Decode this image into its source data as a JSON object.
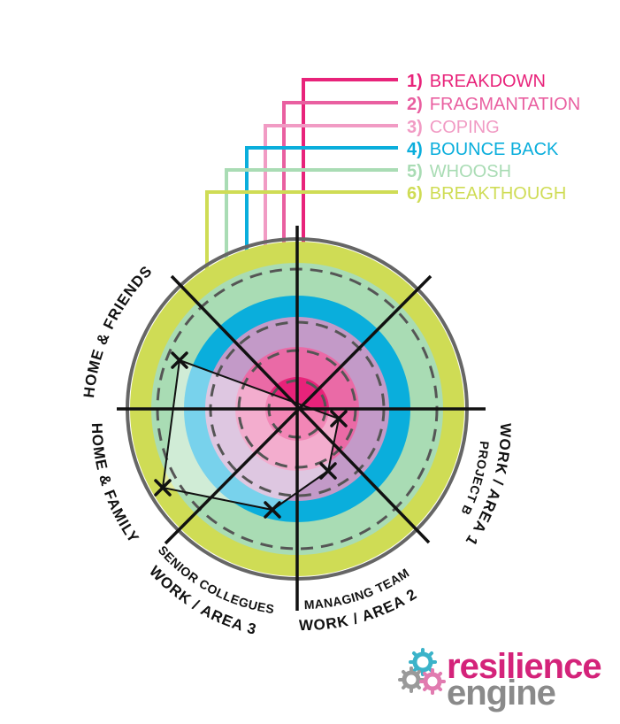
{
  "legend": [
    {
      "num": "1)",
      "label": "BREAKDOWN",
      "color": "#e8237a"
    },
    {
      "num": "2)",
      "label": "FRAGMANTATION",
      "color": "#e95fa0"
    },
    {
      "num": "3)",
      "label": "COPING",
      "color": "#f19bc4"
    },
    {
      "num": "4)",
      "label": "BOUNCE BACK",
      "color": "#0aaedc"
    },
    {
      "num": "5)",
      "label": "WHOOSH",
      "color": "#a9dcb4"
    },
    {
      "num": "6)",
      "label": "BREAKTHOUGH",
      "color": "#cfdc55"
    }
  ],
  "segments": {
    "home_friends": "HOME & FRIENDS",
    "home_family": "HOME & FAMILY",
    "work_area1": "WORK / AREA 1",
    "work_area1_sub": "PROJECT B",
    "work_area2": "WORK / AREA 2",
    "work_area2_sub": "MANAGING TEAM",
    "work_area3": "WORK / AREA 3",
    "work_area3_sub": "SENIOR COLLEGUES"
  },
  "ring_colors": {
    "outline": "#666666",
    "lime": "#cfdc55",
    "mint": "#a9dcb4",
    "blue": "#0aaedc",
    "lilac": "#c39ac8",
    "pink_mid": "#ea6aa6",
    "pink_core": "#e8237a"
  },
  "brand": {
    "word1": "resilience",
    "word2": "engine",
    "color1": "#d4237a",
    "color2": "#8a8a8a",
    "gear_colors": [
      "#3bb3c9",
      "#9a9a9a",
      "#e17bb0"
    ]
  }
}
